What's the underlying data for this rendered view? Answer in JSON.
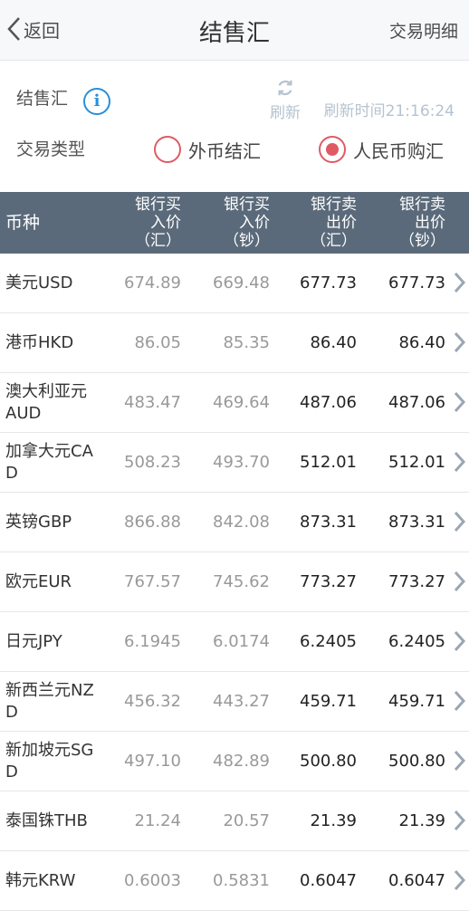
{
  "nav": {
    "back_label": "返回",
    "title": "结售汇",
    "detail_label": "交易明细"
  },
  "info": {
    "label": "结售汇",
    "refresh_label": "刷新",
    "refresh_time": "刷新时间21:16:24",
    "trade_type_label": "交易类型",
    "options": [
      {
        "label": "外币结汇",
        "selected": false
      },
      {
        "label": "人民币购汇",
        "selected": true
      }
    ]
  },
  "table": {
    "headers": {
      "currency": "币种",
      "buy_remit": [
        "银行买",
        "入价",
        "（汇）"
      ],
      "buy_cash": [
        "银行买",
        "入价",
        "（钞）"
      ],
      "sell_remit": [
        "银行卖",
        "出价",
        "（汇）"
      ],
      "sell_cash": [
        "银行卖",
        "出价",
        "（钞）"
      ]
    },
    "rows": [
      {
        "currency": "美元USD",
        "buy_remit": "674.89",
        "buy_cash": "669.48",
        "sell_remit": "677.73",
        "sell_cash": "677.73"
      },
      {
        "currency": "港币HKD",
        "buy_remit": "86.05",
        "buy_cash": "85.35",
        "sell_remit": "86.40",
        "sell_cash": "86.40"
      },
      {
        "currency": "澳大利亚元AUD",
        "buy_remit": "483.47",
        "buy_cash": "469.64",
        "sell_remit": "487.06",
        "sell_cash": "487.06"
      },
      {
        "currency": "加拿大元CAD",
        "buy_remit": "508.23",
        "buy_cash": "493.70",
        "sell_remit": "512.01",
        "sell_cash": "512.01"
      },
      {
        "currency": "英镑GBP",
        "buy_remit": "866.88",
        "buy_cash": "842.08",
        "sell_remit": "873.31",
        "sell_cash": "873.31"
      },
      {
        "currency": "欧元EUR",
        "buy_remit": "767.57",
        "buy_cash": "745.62",
        "sell_remit": "773.27",
        "sell_cash": "773.27"
      },
      {
        "currency": "日元JPY",
        "buy_remit": "6.1945",
        "buy_cash": "6.0174",
        "sell_remit": "6.2405",
        "sell_cash": "6.2405"
      },
      {
        "currency": "新西兰元NZD",
        "buy_remit": "456.32",
        "buy_cash": "443.27",
        "sell_remit": "459.71",
        "sell_cash": "459.71"
      },
      {
        "currency": "新加坡元SGD",
        "buy_remit": "497.10",
        "buy_cash": "482.89",
        "sell_remit": "500.80",
        "sell_cash": "500.80"
      },
      {
        "currency": "泰国铢THB",
        "buy_remit": "21.24",
        "buy_cash": "20.57",
        "sell_remit": "21.39",
        "sell_cash": "21.39"
      },
      {
        "currency": "韩元KRW",
        "buy_remit": "0.6003",
        "buy_cash": "0.5831",
        "sell_remit": "0.6047",
        "sell_cash": "0.6047"
      }
    ]
  },
  "colors": {
    "header_bg": "#5b6a7a",
    "accent_red": "#e05a66",
    "info_blue": "#2a8fd8",
    "muted": "#b6c3d0"
  }
}
